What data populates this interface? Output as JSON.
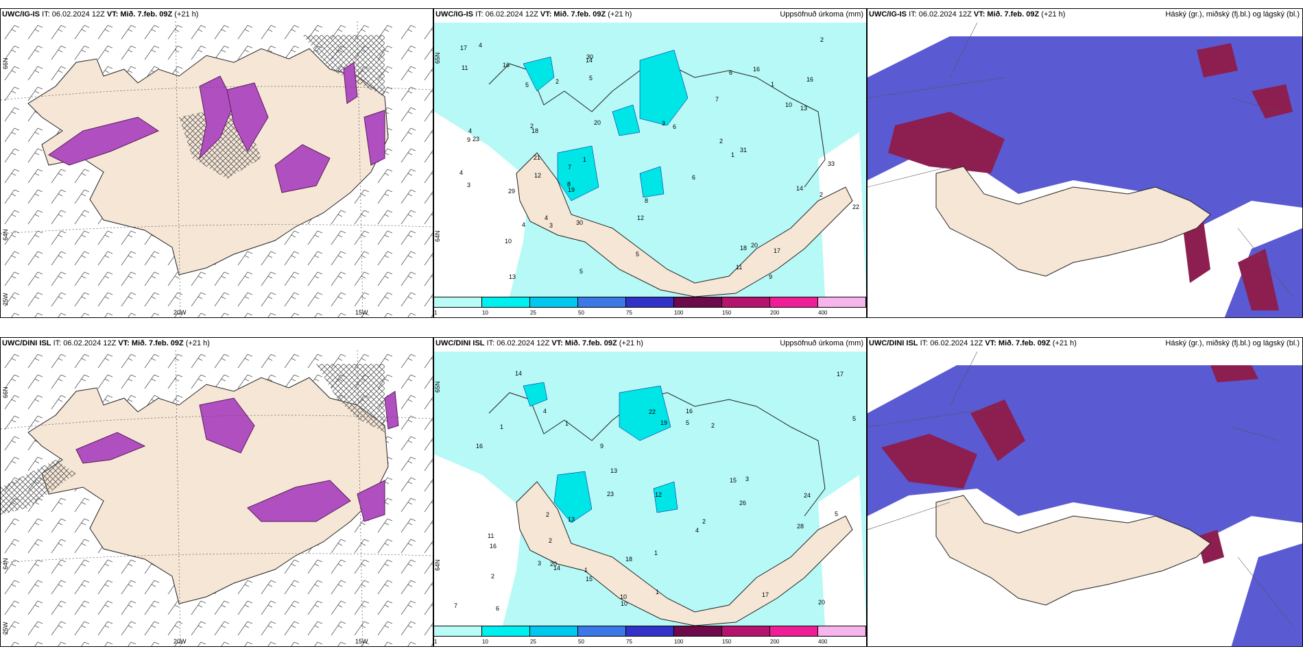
{
  "rows": [
    {
      "panels": [
        {
          "model": "UWC/IG-IS",
          "it": "IT: 06.02.2024 12Z",
          "vt": "VT: Mið. 7.feb. 09Z",
          "lead": "(+21 h)",
          "right": "",
          "lon_labels": [
            "20W",
            "15W"
          ],
          "lat_labels": [
            "66N",
            "64N",
            "25W"
          ]
        },
        {
          "model": "UWC/IG-IS",
          "it": "IT: 06.02.2024 12Z",
          "vt": "VT: Mið. 7.feb. 09Z",
          "lead": "(+21 h)",
          "right": "Uppsöfnuð úrkoma (mm)",
          "lat_labels": [
            "65N",
            "64N"
          ],
          "values": [
            "4",
            "5",
            "21",
            "23",
            "13",
            "17",
            "30",
            "33",
            "31",
            "30",
            "16",
            "8",
            "12",
            "3",
            "14",
            "17",
            "16",
            "20",
            "20",
            "14",
            "19",
            "9",
            "10",
            "10",
            "7",
            "8",
            "6",
            "7",
            "11",
            "12",
            "11",
            "13",
            "18",
            "18",
            "16",
            "6",
            "29",
            "22",
            "9",
            "5",
            "4",
            "3",
            "2",
            "1",
            "1",
            "2",
            "2",
            "1",
            "2",
            "2",
            "3",
            "4",
            "4",
            "4",
            "6",
            "5",
            "5"
          ]
        },
        {
          "model": "UWC/IG-IS",
          "it": "IT: 06.02.2024 12Z",
          "vt": "VT: Mið. 7.feb. 09Z",
          "lead": "(+21 h)",
          "right": "Háský (gr.), miðský (fj.bl.) og lágský (bl.)"
        }
      ]
    },
    {
      "panels": [
        {
          "model": "UWC/DINI ISL",
          "it": "IT: 06.02.2024 12Z",
          "vt": "VT: Mið. 7.feb. 09Z",
          "lead": "(+21 h)",
          "right": "",
          "lon_labels": [
            "20W",
            "15W"
          ],
          "lat_labels": [
            "66N",
            "64N",
            "25W"
          ]
        },
        {
          "model": "UWC/DINI ISL",
          "it": "IT: 06.02.2024 12Z",
          "vt": "VT: Mið. 7.feb. 09Z",
          "lead": "(+21 h)",
          "right": "Uppsöfnuð úrkoma (mm)",
          "lat_labels": [
            "65N",
            "64N"
          ],
          "values": [
            "4",
            "5",
            "16",
            "20",
            "17",
            "15",
            "11",
            "20",
            "23",
            "22",
            "26",
            "19",
            "18",
            "12",
            "10",
            "14",
            "17",
            "10",
            "13",
            "13",
            "28",
            "24",
            "14",
            "16",
            "15",
            "16",
            "9",
            "7",
            "5",
            "6",
            "4",
            "3",
            "2",
            "1",
            "1",
            "2",
            "2",
            "1",
            "1",
            "1",
            "3",
            "2",
            "2",
            "5"
          ]
        },
        {
          "model": "UWC/DINI ISL",
          "it": "IT: 06.02.2024 12Z",
          "vt": "VT: Mið. 7.feb. 09Z",
          "lead": "(+21 h)",
          "right": "Háský (gr.), miðský (fj.bl.) og lágský (bl.)"
        }
      ]
    }
  ],
  "colorbar": {
    "ticks": [
      "1",
      "10",
      "25",
      "50",
      "75",
      "100",
      "150",
      "200",
      "400"
    ],
    "colors": [
      "#b9fbf6",
      "#00f0f0",
      "#00c8ee",
      "#3c78e6",
      "#3232c8",
      "#6e0a4b",
      "#b4146e",
      "#f01e96",
      "#f8b4ec"
    ]
  },
  "colors": {
    "land": "#f5e6d6",
    "precip_field": "#b6f9f6",
    "cloud_blue": "#5a5ad2",
    "cloud_dark": "#8c1e50",
    "sea": "#ffffff"
  }
}
